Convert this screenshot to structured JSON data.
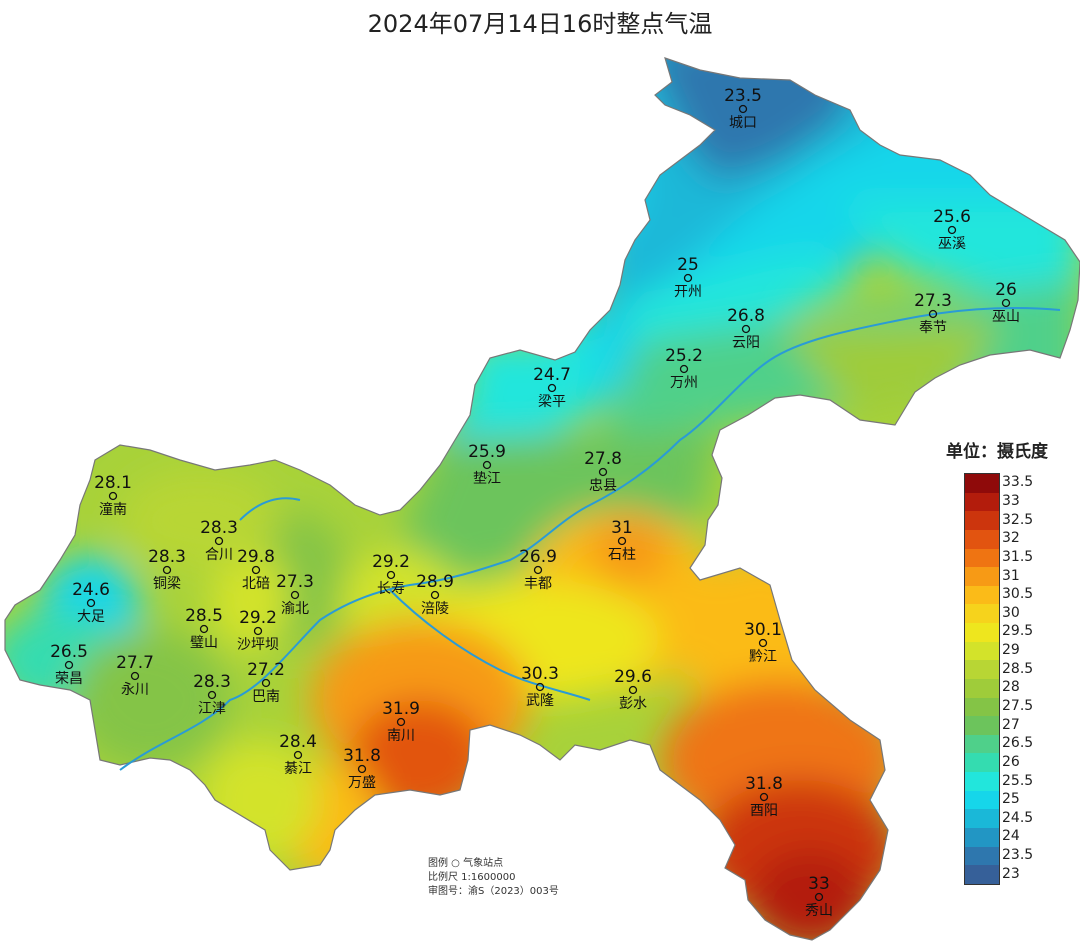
{
  "title": "2024年07月14日16时整点气温",
  "unit_label": "单位：摄氏度",
  "legend": {
    "ticks": [
      "33.5",
      "33",
      "32.5",
      "32",
      "31.5",
      "31",
      "30.5",
      "30",
      "29.5",
      "29",
      "28.5",
      "28",
      "27.5",
      "27",
      "26.5",
      "26",
      "25.5",
      "25",
      "24.5",
      "24",
      "23.5",
      "23"
    ],
    "colors": [
      "#8f0a0a",
      "#b31c0c",
      "#cc350d",
      "#e25410",
      "#ef7412",
      "#f79a15",
      "#fbbb18",
      "#f6d31c",
      "#eee61e",
      "#d3e32a",
      "#b8d634",
      "#9fcc3a",
      "#84c446",
      "#6cc45c",
      "#4fd08a",
      "#34dcb0",
      "#22e6dc",
      "#16d6ea",
      "#1ab8d8",
      "#2296c4",
      "#2e77ae",
      "#366099"
    ]
  },
  "info": {
    "legend_line": "图例 ○ 气象站点",
    "scale_line": "比例尺  1:1600000",
    "review_line": "审图号：渝S（2023）003号"
  },
  "stations": [
    {
      "name": "城口",
      "value": "23.5"
    },
    {
      "name": "巫溪",
      "value": "25.6"
    },
    {
      "name": "开州",
      "value": "25"
    },
    {
      "name": "巫山",
      "value": "26"
    },
    {
      "name": "奉节",
      "value": "27.3"
    },
    {
      "name": "云阳",
      "value": "26.8"
    },
    {
      "name": "万州",
      "value": "25.2"
    },
    {
      "name": "梁平",
      "value": "24.7"
    },
    {
      "name": "垫江",
      "value": "25.9"
    },
    {
      "name": "忠县",
      "value": "27.8"
    },
    {
      "name": "石柱",
      "value": "31"
    },
    {
      "name": "潼南",
      "value": "28.1"
    },
    {
      "name": "合川",
      "value": "28.3"
    },
    {
      "name": "铜梁",
      "value": "28.3"
    },
    {
      "name": "北碚",
      "value": "29.8"
    },
    {
      "name": "渝北",
      "value": "27.3"
    },
    {
      "name": "长寿",
      "value": "29.2"
    },
    {
      "name": "涪陵",
      "value": "28.9"
    },
    {
      "name": "丰都",
      "value": "26.9"
    },
    {
      "name": "大足",
      "value": "24.6"
    },
    {
      "name": "璧山",
      "value": "28.5"
    },
    {
      "name": "沙坪坝",
      "value": "29.2"
    },
    {
      "name": "荣昌",
      "value": "26.5"
    },
    {
      "name": "永川",
      "value": "27.7"
    },
    {
      "name": "巴南",
      "value": "27.2"
    },
    {
      "name": "江津",
      "value": "28.3"
    },
    {
      "name": "綦江",
      "value": "28.4"
    },
    {
      "name": "南川",
      "value": "31.9"
    },
    {
      "name": "万盛",
      "value": "31.8"
    },
    {
      "name": "武隆",
      "value": "30.3"
    },
    {
      "name": "彭水",
      "value": "29.6"
    },
    {
      "name": "黔江",
      "value": "30.1"
    },
    {
      "name": "酉阳",
      "value": "31.8"
    },
    {
      "name": "秀山",
      "value": "33"
    }
  ]
}
